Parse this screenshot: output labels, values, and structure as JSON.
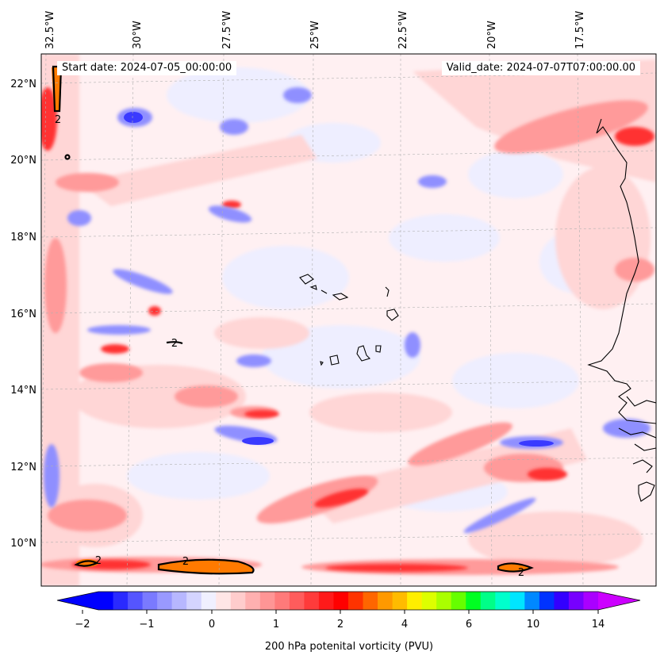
{
  "start_label": "Start date: 2024-07-05_00:00:00",
  "valid_label": "Valid_date: 2024-07-07T07:00:00.00",
  "lon_labels": [
    "32.5°W",
    "30°W",
    "27.5°W",
    "25°W",
    "22.5°W",
    "20°W",
    "17.5°W"
  ],
  "lat_labels": [
    "22°N",
    "20°N",
    "18°N",
    "16°N",
    "14°N",
    "12°N",
    "10°N"
  ],
  "contour_label": "2",
  "colorbar": {
    "title": "200 hPa potenital vorticity (PVU)",
    "ticks": [
      "−2",
      "−1",
      "0",
      "1",
      "2",
      "4",
      "6",
      "10",
      "14"
    ],
    "colors": [
      "#0000ff",
      "#2a2aff",
      "#5555ff",
      "#7a7aff",
      "#9999ff",
      "#b7b7ff",
      "#d4d4ff",
      "#f0f0ff",
      "#ffe6e6",
      "#ffcccc",
      "#ffb0b0",
      "#ff9595",
      "#ff7a7a",
      "#ff5c5c",
      "#ff3b3b",
      "#ff1a1a",
      "#ff0000",
      "#ff3300",
      "#ff6600",
      "#ff9900",
      "#ffbb00",
      "#ffee00",
      "#ddff00",
      "#aaff00",
      "#66ff00",
      "#00ff22",
      "#00ff88",
      "#00ffcc",
      "#00e5ff",
      "#0088ff",
      "#0033ff",
      "#3300ff",
      "#7700ff",
      "#aa00ff"
    ],
    "under_color": "#0000ff",
    "over_color": "#cc00ff"
  }
}
